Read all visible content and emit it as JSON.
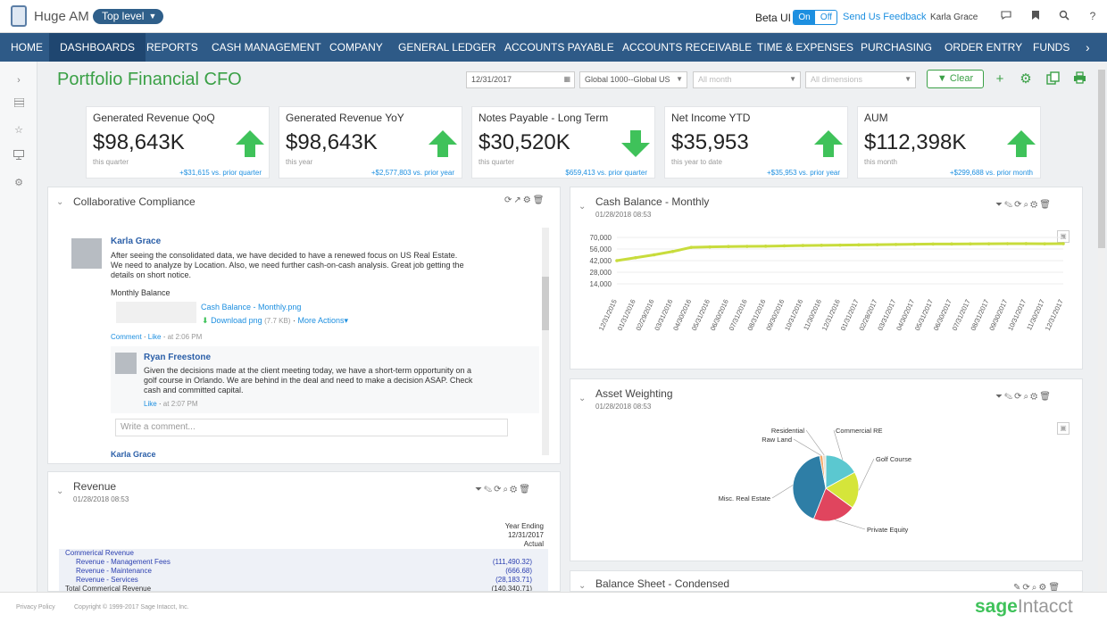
{
  "app": {
    "name": "Huge AM",
    "level": "Top level"
  },
  "topbar": {
    "beta_label": "Beta UI",
    "toggle_on": "On",
    "toggle_off": "Off",
    "feedback": "Send Us Feedback",
    "user": "Karla Grace"
  },
  "nav": [
    "HOME",
    "DASHBOARDS",
    "REPORTS",
    "CASH MANAGEMENT",
    "COMPANY",
    "GENERAL LEDGER",
    "ACCOUNTS PAYABLE",
    "ACCOUNTS RECEIVABLE",
    "TIME & EXPENSES",
    "PURCHASING",
    "ORDER ENTRY",
    "FUNDS"
  ],
  "nav_active": "DASHBOARDS",
  "page": {
    "title": "Portfolio Financial CFO"
  },
  "filters": {
    "date": "12/31/2017",
    "entity": "Global 1000--Global US",
    "month_ph": "All month",
    "dim_ph": "All dimensions",
    "clear": "Clear"
  },
  "kpis": [
    {
      "title": "Generated Revenue QoQ",
      "value": "$98,643K",
      "sub": "this quarter",
      "change": "+$31,615 vs. prior quarter",
      "direction": "up"
    },
    {
      "title": "Generated Revenue YoY",
      "value": "$98,643K",
      "sub": "this year",
      "change": "+$2,577,803 vs. prior year",
      "direction": "up"
    },
    {
      "title": "Notes Payable - Long Term",
      "value": "$30,520K",
      "sub": "this quarter",
      "change": "$659,413 vs. prior quarter",
      "direction": "down"
    },
    {
      "title": "Net Income YTD",
      "value": "$35,953",
      "sub": "this year to date",
      "change": "+$35,953 vs. prior year",
      "direction": "up"
    },
    {
      "title": "AUM",
      "value": "$112,398K",
      "sub": "this month",
      "change": "+$299,688 vs. prior month",
      "direction": "up"
    }
  ],
  "compliance": {
    "title": "Collaborative Compliance",
    "post": {
      "author": "Karla Grace",
      "text": [
        "After seeing the consolidated data, we have decided to have a renewed focus on US Real Estate.",
        "We need to analyze by Location. Also, we need further cash-on-cash analysis. Great job getting the",
        "details on short notice."
      ],
      "attachment_label": "Monthly Balance",
      "file": "Cash Balance - Monthly.png",
      "download": "Download png",
      "size": "(7.7 KB)",
      "more": "More Actions",
      "comment": "Comment",
      "like": "Like",
      "time": "at 2:06 PM"
    },
    "reply": {
      "author": "Ryan Freestone",
      "text": [
        "Given the decisions made at the client meeting today, we have a short-term opportunity on a",
        "golf course in Orlando. We are behind in the deal and need to make a decision ASAP. Check",
        "cash and committed capital."
      ],
      "like": "Like",
      "time": "at 2:07 PM"
    },
    "comment_placeholder": "Write a comment...",
    "next_author": "Karla Grace"
  },
  "revenue": {
    "title": "Revenue",
    "date": "01/28/2018 08:53",
    "col_header": [
      "Year Ending",
      "12/31/2017",
      "Actual"
    ],
    "rows": [
      {
        "label": "Commerical Revenue",
        "value": ""
      },
      {
        "label": "Revenue - Management Fees",
        "value": "(111,490.32)"
      },
      {
        "label": "Revenue - Maintenance",
        "value": "(666.68)"
      },
      {
        "label": "Revenue - Services",
        "value": "(28,183.71)"
      },
      {
        "label": "Total Commerical Revenue",
        "value": "(140,340.71)"
      }
    ]
  },
  "cash_balance": {
    "title": "Cash Balance - Monthly",
    "date": "01/28/2018 08:53"
  },
  "asset_weighting": {
    "title": "Asset Weighting",
    "date": "01/28/2018 08:53"
  },
  "balance_sheet": {
    "title": "Balance Sheet - Condensed"
  },
  "footer": {
    "privacy": "Privacy Policy",
    "copyright": "Copyright © 1999-2017 Sage Intacct, Inc.",
    "brand_sage": "sage",
    "brand_intacct": "Intacct"
  },
  "colors": {
    "nav": "#2e5a87",
    "accent_green": "#3aa046",
    "link": "#1d8fe0",
    "line": "#c8dc3c"
  },
  "icons": {
    "bookmark": "bookmark-icon",
    "search": "search-icon",
    "help": "help-icon",
    "chat": "chat-icon"
  },
  "chart_data": [
    {
      "type": "line",
      "x": [
        "12/31/2015",
        "01/31/2016",
        "02/29/2016",
        "03/31/2016",
        "04/30/2016",
        "05/31/2016",
        "06/30/2016",
        "07/31/2016",
        "08/31/2016",
        "09/30/2016",
        "10/31/2016",
        "11/30/2016",
        "12/31/2016",
        "01/31/2017",
        "02/28/2017",
        "03/31/2017",
        "04/30/2017",
        "05/31/2017",
        "06/30/2017",
        "07/31/2017",
        "08/31/2017",
        "09/30/2017",
        "10/31/2017",
        "11/30/2017",
        "12/31/2017"
      ],
      "series": [
        {
          "values": [
            42000,
            45500,
            49000,
            53000,
            58000,
            58500,
            59000,
            59200,
            59400,
            59800,
            60200,
            60500,
            60700,
            61000,
            61200,
            61500,
            61800,
            62000,
            62100,
            62200,
            62300,
            62400,
            62500,
            62300,
            62400
          ]
        }
      ],
      "yticks": [
        70000,
        56000,
        42000,
        28000,
        14000
      ],
      "ylim": [
        0,
        70000
      ]
    },
    {
      "type": "pie",
      "categories": [
        "Commercial RE",
        "Golf Course",
        "Private Equity",
        "Misc. Real Estate",
        "Raw Land",
        "Residential"
      ],
      "values": [
        17,
        18,
        21,
        41,
        1.5,
        1.5
      ],
      "colors": [
        "#5bc8d0",
        "#d5e53a",
        "#e0455e",
        "#2e7ea6",
        "#f2a868",
        "#e8e0d0"
      ]
    }
  ]
}
